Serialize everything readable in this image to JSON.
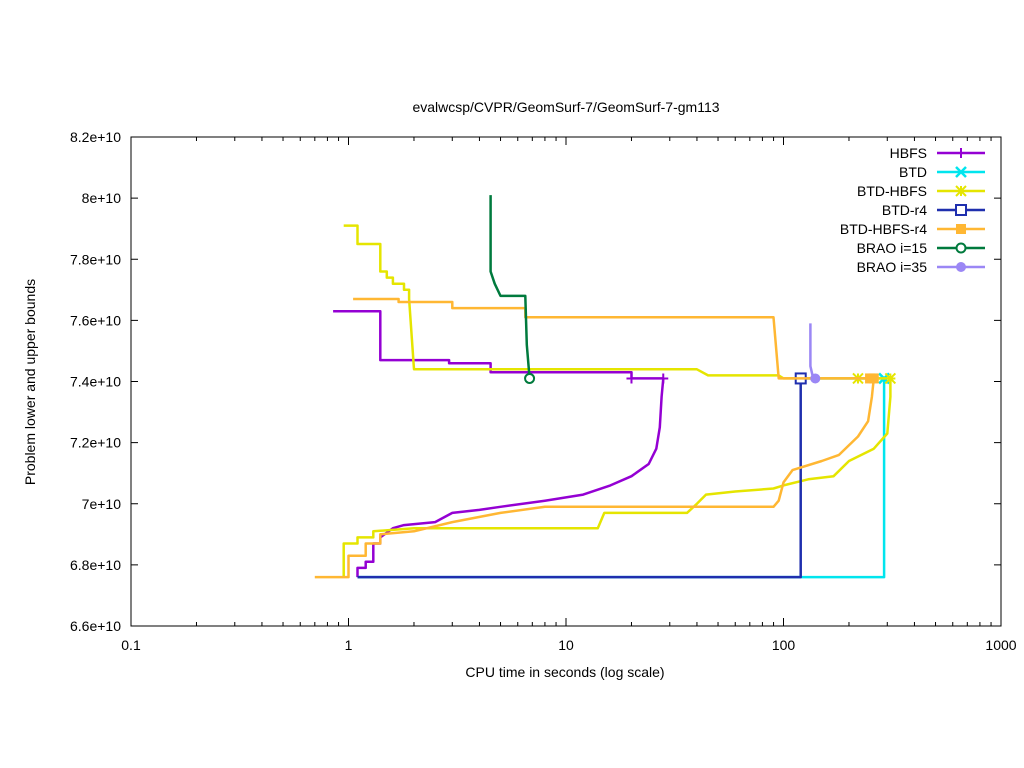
{
  "chart_data": {
    "type": "line",
    "title": "evalwcsp/CVPR/GeomSurf-7/GeomSurf-7-gm113",
    "xlabel": "CPU time in seconds (log scale)",
    "ylabel": "Problem lower and upper bounds",
    "xscale": "log",
    "xlim": [
      0.1,
      1000
    ],
    "ylim": [
      66000000000,
      82000000000
    ],
    "xticks": [
      0.1,
      1,
      10,
      100,
      1000
    ],
    "xtick_labels": [
      "0.1",
      "1",
      "10",
      "100",
      "1000"
    ],
    "yticks": [
      66000000000,
      68000000000,
      70000000000,
      72000000000,
      74000000000,
      76000000000,
      78000000000,
      80000000000,
      82000000000
    ],
    "ytick_labels": [
      "6.6e+10",
      "6.8e+10",
      "7e+10",
      "7.2e+10",
      "7.4e+10",
      "7.6e+10",
      "7.8e+10",
      "8e+10",
      "8.2e+10"
    ],
    "grid": false,
    "legend_position": "top-right",
    "series": [
      {
        "name": "HBFS",
        "color": "#9400d3",
        "marker": "plus",
        "upper": [
          [
            0.85,
            76300000000
          ],
          [
            1.4,
            76300000000
          ],
          [
            1.4,
            74700000000
          ],
          [
            2.9,
            74700000000
          ],
          [
            2.9,
            74600000000
          ],
          [
            4.5,
            74600000000
          ],
          [
            4.5,
            74300000000
          ],
          [
            20,
            74300000000
          ],
          [
            20,
            74100000000
          ],
          [
            28,
            74100000000
          ]
        ],
        "lower": [
          [
            1.1,
            67600000000
          ],
          [
            1.1,
            67900000000
          ],
          [
            1.2,
            67900000000
          ],
          [
            1.2,
            68100000000
          ],
          [
            1.3,
            68100000000
          ],
          [
            1.3,
            68700000000
          ],
          [
            1.4,
            68700000000
          ],
          [
            1.4,
            68900000000
          ],
          [
            1.6,
            69200000000
          ],
          [
            1.8,
            69300000000
          ],
          [
            2.5,
            69400000000
          ],
          [
            3,
            69700000000
          ],
          [
            4,
            69800000000
          ],
          [
            5,
            69900000000
          ],
          [
            8,
            70100000000
          ],
          [
            12,
            70300000000
          ],
          [
            16,
            70600000000
          ],
          [
            20,
            70900000000
          ],
          [
            24,
            71300000000
          ],
          [
            26,
            71800000000
          ],
          [
            27,
            72500000000
          ],
          [
            27.5,
            73500000000
          ],
          [
            28,
            74100000000
          ]
        ],
        "markers": [
          [
            20,
            74100000000
          ],
          [
            28,
            74100000000
          ]
        ]
      },
      {
        "name": "BTD",
        "color": "#00e5ee",
        "marker": "cross",
        "upper": [
          [
            118,
            74100000000
          ],
          [
            290,
            74100000000
          ]
        ],
        "lower": [
          [
            1.1,
            67600000000
          ],
          [
            290,
            67600000000
          ],
          [
            290,
            74100000000
          ]
        ],
        "markers": [
          [
            290,
            74100000000
          ]
        ]
      },
      {
        "name": "BTD-HBFS",
        "color": "#e5e500",
        "marker": "star",
        "upper": [
          [
            0.95,
            79100000000
          ],
          [
            1.1,
            79100000000
          ],
          [
            1.1,
            78500000000
          ],
          [
            1.4,
            78500000000
          ],
          [
            1.4,
            77600000000
          ],
          [
            1.5,
            77600000000
          ],
          [
            1.5,
            77400000000
          ],
          [
            1.6,
            77400000000
          ],
          [
            1.6,
            77200000000
          ],
          [
            1.8,
            77200000000
          ],
          [
            1.8,
            77000000000
          ],
          [
            1.9,
            77000000000
          ],
          [
            1.9,
            76700000000
          ],
          [
            2,
            74400000000
          ],
          [
            40,
            74400000000
          ],
          [
            45,
            74200000000
          ],
          [
            95,
            74200000000
          ],
          [
            100,
            74100000000
          ],
          [
            310,
            74100000000
          ]
        ],
        "lower": [
          [
            0.95,
            67600000000
          ],
          [
            0.95,
            68700000000
          ],
          [
            1.1,
            68700000000
          ],
          [
            1.1,
            68900000000
          ],
          [
            1.3,
            68900000000
          ],
          [
            1.3,
            69100000000
          ],
          [
            2,
            69200000000
          ],
          [
            14,
            69200000000
          ],
          [
            15,
            69700000000
          ],
          [
            36,
            69700000000
          ],
          [
            40,
            70000000000
          ],
          [
            44,
            70300000000
          ],
          [
            60,
            70400000000
          ],
          [
            90,
            70500000000
          ],
          [
            100,
            70600000000
          ],
          [
            130,
            70800000000
          ],
          [
            170,
            70900000000
          ],
          [
            200,
            71400000000
          ],
          [
            260,
            71800000000
          ],
          [
            300,
            72300000000
          ],
          [
            310,
            73500000000
          ],
          [
            310,
            74100000000
          ]
        ],
        "markers": [
          [
            220,
            74100000000
          ],
          [
            310,
            74100000000
          ]
        ]
      },
      {
        "name": "BTD-r4",
        "color": "#1f2fae",
        "marker": "square",
        "upper": [],
        "lower": [
          [
            1.1,
            67600000000
          ],
          [
            120,
            67600000000
          ],
          [
            120,
            74100000000
          ]
        ],
        "markers": [
          [
            120,
            74100000000
          ]
        ]
      },
      {
        "name": "BTD-HBFS-r4",
        "color": "#ffb733",
        "marker": "filled-square",
        "upper": [
          [
            1.05,
            76700000000
          ],
          [
            1.7,
            76700000000
          ],
          [
            1.7,
            76600000000
          ],
          [
            3,
            76600000000
          ],
          [
            3,
            76400000000
          ],
          [
            6.5,
            76400000000
          ],
          [
            6.5,
            76100000000
          ],
          [
            90,
            76100000000
          ],
          [
            95,
            74100000000
          ],
          [
            260,
            74100000000
          ]
        ],
        "lower": [
          [
            0.7,
            67600000000
          ],
          [
            1,
            67600000000
          ],
          [
            1,
            68300000000
          ],
          [
            1.2,
            68300000000
          ],
          [
            1.2,
            68700000000
          ],
          [
            1.4,
            68700000000
          ],
          [
            1.4,
            69000000000
          ],
          [
            2,
            69100000000
          ],
          [
            3,
            69400000000
          ],
          [
            5,
            69700000000
          ],
          [
            8,
            69900000000
          ],
          [
            20,
            69900000000
          ],
          [
            50,
            69900000000
          ],
          [
            90,
            69900000000
          ],
          [
            95,
            70100000000
          ],
          [
            100,
            70700000000
          ],
          [
            110,
            71100000000
          ],
          [
            150,
            71400000000
          ],
          [
            180,
            71600000000
          ],
          [
            220,
            72200000000
          ],
          [
            245,
            72700000000
          ],
          [
            255,
            73500000000
          ],
          [
            260,
            74100000000
          ]
        ],
        "markers": [
          [
            250,
            74100000000
          ],
          [
            260,
            74100000000
          ]
        ]
      },
      {
        "name": "BRAO i=15",
        "color": "#007a3d",
        "marker": "open-circle",
        "upper": [
          [
            4.5,
            80100000000
          ],
          [
            4.5,
            77600000000
          ],
          [
            4.7,
            77200000000
          ],
          [
            5,
            76800000000
          ],
          [
            6.5,
            76800000000
          ],
          [
            6.6,
            75200000000
          ],
          [
            6.8,
            74100000000
          ]
        ],
        "lower": [],
        "markers": [
          [
            6.8,
            74100000000
          ]
        ]
      },
      {
        "name": "BRAO i=35",
        "color": "#9b87f5",
        "marker": "filled-circle",
        "upper": [
          [
            133,
            75900000000
          ],
          [
            133,
            74500000000
          ],
          [
            137,
            74100000000
          ],
          [
            145,
            74100000000
          ]
        ],
        "lower": [],
        "markers": [
          [
            140,
            74100000000
          ]
        ]
      }
    ]
  }
}
